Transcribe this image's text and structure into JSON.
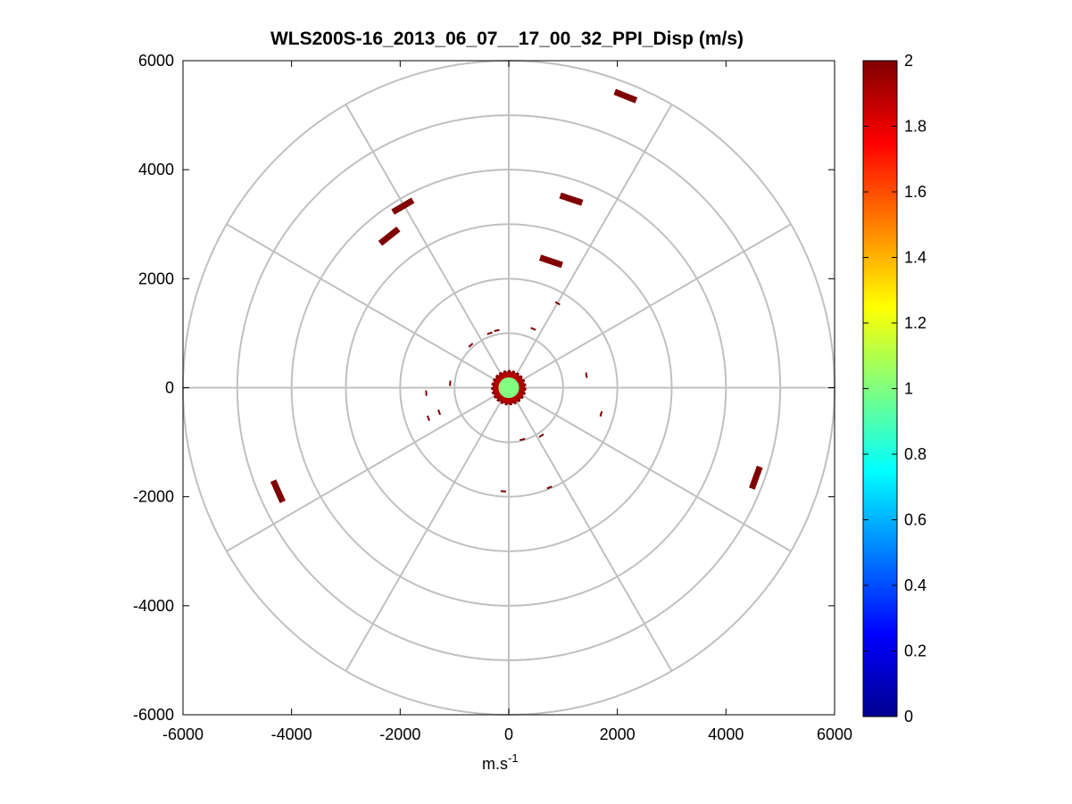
{
  "chart_data": {
    "type": "scatter",
    "subtype": "polar-ppi",
    "title": "WLS200S-16_2013_06_07__17_00_32_PPI_Disp (m/s)",
    "xlabel": "m.s",
    "xlabel_superscript": "-1",
    "ylabel": "",
    "xlim": [
      -6000,
      6000
    ],
    "ylim": [
      -6000,
      6000
    ],
    "x_ticks": [
      "-6000",
      "-4000",
      "-2000",
      "0",
      "2000",
      "4000",
      "6000"
    ],
    "y_ticks": [
      "6000",
      "4000",
      "2000",
      "0",
      "-2000",
      "-4000",
      "-6000"
    ],
    "grid": true,
    "polar_rings": [
      1000,
      2000,
      3000,
      4000,
      5000,
      6000
    ],
    "polar_spokes_deg": [
      0,
      30,
      60,
      90,
      120,
      150
    ],
    "colorbar": {
      "colormap": "jet",
      "range": [
        0,
        2
      ],
      "ticks": [
        "2",
        "1.8",
        "1.6",
        "1.4",
        "1.2",
        "1",
        "0.8",
        "0.6",
        "0.4",
        "0.2",
        "0"
      ]
    },
    "points": [
      {
        "x": 2150,
        "y": 5350,
        "value": 2
      },
      {
        "x": 1150,
        "y": 3460,
        "value": 2
      },
      {
        "x": 780,
        "y": 2320,
        "value": 2
      },
      {
        "x": -1950,
        "y": 3330,
        "value": 2
      },
      {
        "x": -2200,
        "y": 2780,
        "value": 2
      },
      {
        "x": -4250,
        "y": -1900,
        "value": 2
      },
      {
        "x": 4550,
        "y": -1650,
        "value": 2
      },
      {
        "x": 900,
        "y": 1550,
        "value": 2
      },
      {
        "x": 450,
        "y": 1080,
        "value": 2
      },
      {
        "x": -700,
        "y": 780,
        "value": 2
      },
      {
        "x": -350,
        "y": 1000,
        "value": 2
      },
      {
        "x": -220,
        "y": 1050,
        "value": 2
      },
      {
        "x": 1430,
        "y": 230,
        "value": 2
      },
      {
        "x": -1080,
        "y": 80,
        "value": 2
      },
      {
        "x": -1520,
        "y": -100,
        "value": 2
      },
      {
        "x": -1280,
        "y": -450,
        "value": 2
      },
      {
        "x": -1480,
        "y": -560,
        "value": 2
      },
      {
        "x": 1700,
        "y": -480,
        "value": 2
      },
      {
        "x": 250,
        "y": -950,
        "value": 2
      },
      {
        "x": 600,
        "y": -880,
        "value": 2
      },
      {
        "x": 750,
        "y": -1830,
        "value": 2
      },
      {
        "x": -100,
        "y": -1900,
        "value": 2
      }
    ],
    "center_cluster": {
      "x": 0,
      "y": 0,
      "outer_radius": 300,
      "inner_radius": 190,
      "outer_value": 1.9,
      "inner_value": 1.0
    }
  }
}
